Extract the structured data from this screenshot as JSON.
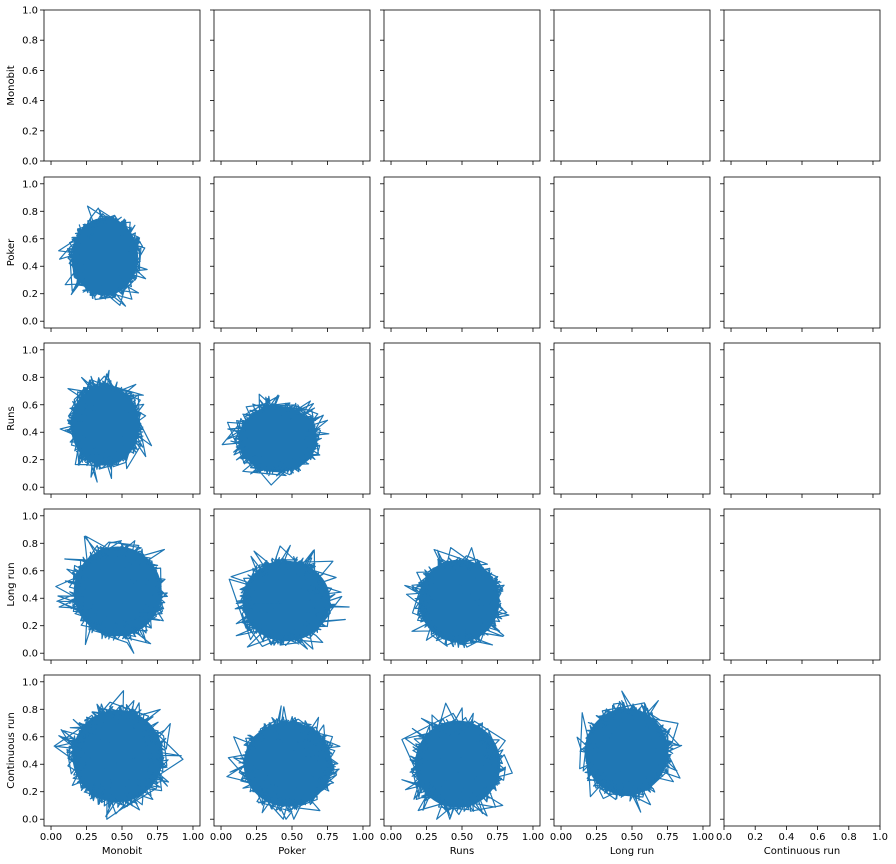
{
  "chart_data": {
    "type": "pairplot-lines",
    "variables": [
      "Monobit",
      "Poker",
      "Runs",
      "Long run",
      "Continuous run"
    ],
    "xlim": [
      0,
      1
    ],
    "ylim": [
      0,
      1
    ],
    "ticks": {
      "inner_x_labels": [
        "0.00",
        "0.25",
        "0.50",
        "0.75",
        "1.00"
      ],
      "last_col_x_labels": [
        "0.0",
        "0.2",
        "0.4",
        "0.6",
        "0.8",
        "1.0"
      ],
      "first_row_y_labels": [
        "0.0",
        "0.2",
        "0.4",
        "0.6",
        "0.8",
        "1.0"
      ],
      "other_row_y_labels": [
        "0.0",
        "0.2",
        "0.4",
        "0.6",
        "0.8",
        "1.0"
      ]
    },
    "series_color": "#1f77b4",
    "grid": false,
    "cells": [
      {
        "row": "Poker",
        "col": "Monobit",
        "filled": true,
        "cx": 0.38,
        "cy": 0.47,
        "rx": 0.27,
        "ry": 0.33
      },
      {
        "row": "Runs",
        "col": "Monobit",
        "filled": true,
        "cx": 0.38,
        "cy": 0.45,
        "rx": 0.28,
        "ry": 0.34
      },
      {
        "row": "Runs",
        "col": "Poker",
        "filled": true,
        "cx": 0.4,
        "cy": 0.35,
        "rx": 0.32,
        "ry": 0.28
      },
      {
        "row": "Long run",
        "col": "Monobit",
        "filled": true,
        "cx": 0.47,
        "cy": 0.45,
        "rx": 0.36,
        "ry": 0.38
      },
      {
        "row": "Long run",
        "col": "Poker",
        "filled": true,
        "cx": 0.46,
        "cy": 0.38,
        "rx": 0.36,
        "ry": 0.34
      },
      {
        "row": "Long run",
        "col": "Runs",
        "filled": true,
        "cx": 0.48,
        "cy": 0.38,
        "rx": 0.33,
        "ry": 0.35
      },
      {
        "row": "Continuous run",
        "col": "Monobit",
        "filled": true,
        "cx": 0.47,
        "cy": 0.46,
        "rx": 0.37,
        "ry": 0.39
      },
      {
        "row": "Continuous run",
        "col": "Poker",
        "filled": true,
        "cx": 0.47,
        "cy": 0.4,
        "rx": 0.36,
        "ry": 0.36
      },
      {
        "row": "Continuous run",
        "col": "Runs",
        "filled": true,
        "cx": 0.47,
        "cy": 0.4,
        "rx": 0.35,
        "ry": 0.37
      },
      {
        "row": "Continuous run",
        "col": "Long run",
        "filled": true,
        "cx": 0.46,
        "cy": 0.49,
        "rx": 0.34,
        "ry": 0.37
      }
    ]
  }
}
